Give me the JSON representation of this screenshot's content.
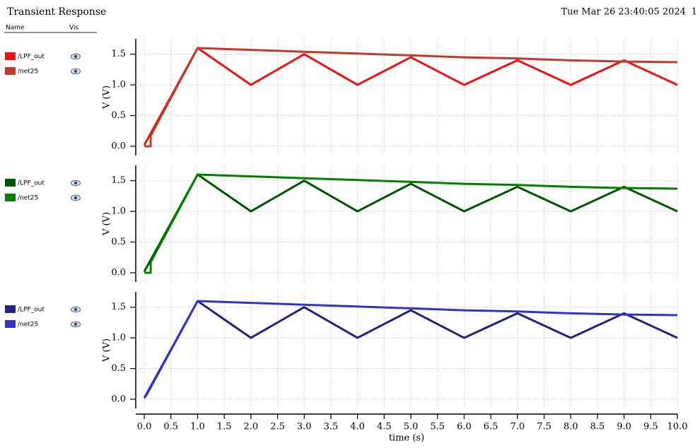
{
  "header": {
    "title": "Transient Response",
    "date": "Tue Mar 26 23:40:05 2024",
    "page": "1"
  },
  "legend_header": {
    "name": "Name",
    "vis": "Vis"
  },
  "chart_data": [
    {
      "type": "line",
      "ylabel": "V (V)",
      "xlim": [
        -0.16,
        10
      ],
      "ylim": [
        -0.15,
        1.75
      ],
      "yticks": [
        {
          "value": 0,
          "label": "0.0"
        },
        {
          "value": 0.5,
          "label": "0.5"
        },
        {
          "value": 1,
          "label": "1.0"
        },
        {
          "value": 1.5,
          "label": "1.5"
        }
      ],
      "grid": true,
      "series": [
        {
          "name": "/LPF_out",
          "color": "#ee1111",
          "x": [
            0,
            1,
            2,
            3,
            4,
            5,
            6,
            7,
            8,
            9,
            10
          ],
          "values": [
            0.02,
            1.6,
            1.0,
            1.5,
            1.0,
            1.45,
            1.0,
            1.4,
            1.0,
            1.4,
            1.0
          ]
        },
        {
          "name": "/net25",
          "color": "#c0392b",
          "x": [
            0,
            0.12,
            0.12,
            1,
            2,
            3,
            4,
            5,
            6,
            7,
            8,
            9,
            10
          ],
          "values": [
            0,
            0,
            0.17,
            1.6,
            1.57,
            1.54,
            1.51,
            1.48,
            1.45,
            1.43,
            1.4,
            1.38,
            1.37
          ]
        }
      ]
    },
    {
      "type": "line",
      "ylabel": "V (V)",
      "xlim": [
        -0.16,
        10
      ],
      "ylim": [
        -0.15,
        1.75
      ],
      "yticks": [
        {
          "value": 0,
          "label": "0.0"
        },
        {
          "value": 0.5,
          "label": "0.5"
        },
        {
          "value": 1,
          "label": "1.0"
        },
        {
          "value": 1.5,
          "label": "1.5"
        }
      ],
      "grid": true,
      "series": [
        {
          "name": "/LPF_out",
          "color": "#005500",
          "x": [
            0,
            1,
            2,
            3,
            4,
            5,
            6,
            7,
            8,
            9,
            10
          ],
          "values": [
            0.02,
            1.6,
            1.0,
            1.5,
            1.0,
            1.45,
            1.0,
            1.4,
            1.0,
            1.4,
            1.0
          ]
        },
        {
          "name": "/net25",
          "color": "#008000",
          "x": [
            0,
            0.12,
            0.12,
            1,
            2,
            3,
            4,
            5,
            6,
            7,
            8,
            9,
            10
          ],
          "values": [
            0,
            0,
            0.17,
            1.6,
            1.57,
            1.54,
            1.51,
            1.48,
            1.45,
            1.43,
            1.4,
            1.38,
            1.37
          ]
        }
      ]
    },
    {
      "type": "line",
      "ylabel": "V (V)",
      "xlabel": "time (s)",
      "xlim": [
        -0.16,
        10
      ],
      "ylim": [
        -0.15,
        1.75
      ],
      "xticks": [
        {
          "value": 0,
          "label": "0.0"
        },
        0.5,
        {
          "value": 1,
          "label": "1.0"
        },
        1.5,
        {
          "value": 2,
          "label": "2.0"
        },
        2.5,
        {
          "value": 3,
          "label": "3.0"
        },
        3.5,
        {
          "value": 4,
          "label": "4.0"
        },
        4.5,
        {
          "value": 5,
          "label": "5.0"
        },
        5.5,
        {
          "value": 6,
          "label": "6.0"
        },
        6.5,
        {
          "value": 7,
          "label": "7.0"
        },
        7.5,
        {
          "value": 8,
          "label": "8.0"
        },
        8.5,
        {
          "value": 9,
          "label": "9.0"
        },
        9.5,
        {
          "value": 10,
          "label": "10.0"
        }
      ],
      "yticks": [
        {
          "value": 0,
          "label": "0.0"
        },
        {
          "value": 0.5,
          "label": "0.5"
        },
        {
          "value": 1,
          "label": "1.0"
        },
        {
          "value": 1.5,
          "label": "1.5"
        }
      ],
      "grid": true,
      "series": [
        {
          "name": "/LPF_out",
          "color": "#22227f",
          "x": [
            0,
            1,
            2,
            3,
            4,
            5,
            6,
            7,
            8,
            9,
            10
          ],
          "values": [
            0.02,
            1.6,
            1.0,
            1.5,
            1.0,
            1.45,
            1.0,
            1.4,
            1.0,
            1.4,
            1.0
          ]
        },
        {
          "name": "/net25",
          "color": "#3333cc",
          "x": [
            0,
            0.05,
            1,
            2,
            3,
            4,
            5,
            6,
            7,
            8,
            9,
            10
          ],
          "values": [
            0.02,
            0.08,
            1.6,
            1.57,
            1.54,
            1.51,
            1.48,
            1.45,
            1.43,
            1.4,
            1.38,
            1.37
          ]
        }
      ]
    }
  ]
}
